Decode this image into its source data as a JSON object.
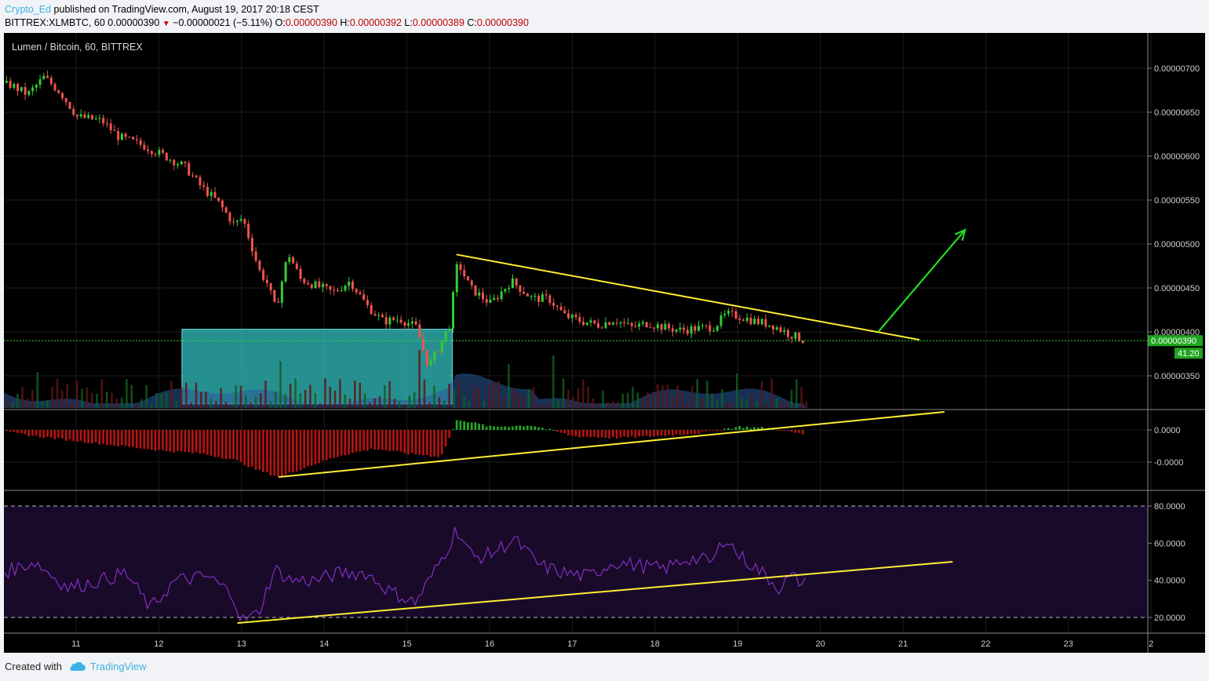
{
  "header": {
    "author": "Crypto_Ed",
    "published_text": " published on TradingView.com, August 19, 2017 20:18 CEST"
  },
  "quote": {
    "symbol": "BITTREX:XLMBTC, 60",
    "last": "0.00000390",
    "arrow": "▼",
    "change": "−0.00000021 (−5.11%)",
    "open_label": "O:",
    "open": "0.00000390",
    "high_label": "H:",
    "high": "0.00000392",
    "low_label": "L:",
    "low": "0.00000389",
    "close_label": "C:",
    "close": "0.00000390"
  },
  "chart_title": "Lumen / Bitcoin, 60, BITTREX",
  "footer": {
    "created_with": "Created with",
    "brand": "TradingView"
  },
  "colors": {
    "up": "#33cc33",
    "down": "#ef5350",
    "trendline": "#ffee33",
    "arrow": "#22dd22",
    "zone": "#33c0c0",
    "rsi_line": "#8a33cc",
    "rsi_band": "#1a0a2a",
    "price_tag": "#1fa51f"
  },
  "chart_data": [
    {
      "type": "candlestick",
      "title": "Lumen / Bitcoin, 60, BITTREX",
      "x_tick_labels": [
        "11",
        "12",
        "13",
        "14",
        "15",
        "16",
        "17",
        "18",
        "19",
        "20",
        "21",
        "22",
        "23",
        "2"
      ],
      "y_tick_labels": [
        "0.00000700",
        "0.00000650",
        "0.00000600",
        "0.00000550",
        "0.00000500",
        "0.00000450",
        "0.00000400",
        "0.00000350"
      ],
      "ylim": [
        3.18e-06,
        7.4e-06
      ],
      "last_price": "0.00000390",
      "volume_label": "41.20",
      "price_path": [
        [
          10.2,
          681
        ],
        [
          10.4,
          670
        ],
        [
          10.6,
          690
        ],
        [
          10.8,
          672
        ],
        [
          11.0,
          645
        ],
        [
          11.3,
          640
        ],
        [
          11.5,
          622
        ],
        [
          11.8,
          612
        ],
        [
          12.1,
          598
        ],
        [
          12.3,
          588
        ],
        [
          12.5,
          565
        ],
        [
          12.7,
          548
        ],
        [
          12.9,
          522
        ],
        [
          13.0,
          530
        ],
        [
          13.1,
          500
        ],
        [
          13.2,
          470
        ],
        [
          13.3,
          455
        ],
        [
          13.4,
          425
        ],
        [
          13.55,
          490
        ],
        [
          13.7,
          460
        ],
        [
          13.9,
          452
        ],
        [
          14.1,
          445
        ],
        [
          14.3,
          458
        ],
        [
          14.5,
          430
        ],
        [
          14.7,
          412
        ],
        [
          14.9,
          415
        ],
        [
          15.1,
          405
        ],
        [
          15.25,
          360
        ],
        [
          15.35,
          378
        ],
        [
          15.5,
          408
        ],
        [
          15.6,
          480
        ],
        [
          15.75,
          450
        ],
        [
          16.0,
          432
        ],
        [
          16.25,
          458
        ],
        [
          16.5,
          438
        ],
        [
          16.7,
          438
        ],
        [
          16.9,
          418
        ],
        [
          17.1,
          412
        ],
        [
          17.3,
          408
        ],
        [
          17.5,
          414
        ],
        [
          17.7,
          405
        ],
        [
          17.9,
          410
        ],
        [
          18.1,
          405
        ],
        [
          18.3,
          402
        ],
        [
          18.5,
          404
        ],
        [
          18.7,
          406
        ],
        [
          18.85,
          420
        ],
        [
          19.0,
          418
        ],
        [
          19.2,
          412
        ],
        [
          19.4,
          408
        ],
        [
          19.6,
          398
        ],
        [
          19.8,
          390
        ]
      ],
      "annotations": {
        "descending_resistance": [
          [
            15.6,
            4.88e-06
          ],
          [
            21.2,
            3.91e-06
          ]
        ],
        "projection_arrow": [
          [
            20.7,
            4e-06
          ],
          [
            21.75,
            5.16e-06
          ]
        ],
        "support_zone": {
          "x": [
            12.28,
            15.55
          ],
          "y": [
            3.18e-06,
            4.03e-06
          ]
        }
      }
    },
    {
      "type": "histogram",
      "title": "MACD histogram",
      "y_tick_labels": [
        "0.0000",
        "-0.0000"
      ],
      "series_path": [
        [
          10.1,
          -2
        ],
        [
          10.5,
          -8
        ],
        [
          11.0,
          -14
        ],
        [
          11.5,
          -20
        ],
        [
          12.0,
          -26
        ],
        [
          12.5,
          -30
        ],
        [
          12.9,
          -38
        ],
        [
          13.2,
          -52
        ],
        [
          13.45,
          -60
        ],
        [
          13.8,
          -46
        ],
        [
          14.2,
          -32
        ],
        [
          14.6,
          -24
        ],
        [
          15.0,
          -30
        ],
        [
          15.4,
          -34
        ],
        [
          15.6,
          14
        ],
        [
          16.0,
          4
        ],
        [
          16.5,
          6
        ],
        [
          17.0,
          -8
        ],
        [
          17.5,
          -10
        ],
        [
          18.0,
          -8
        ],
        [
          18.5,
          -4
        ],
        [
          19.0,
          4
        ],
        [
          19.4,
          2
        ],
        [
          19.8,
          -6
        ]
      ],
      "annotations": {
        "rising_support": [
          [
            13.45,
            -60
          ],
          [
            21.5,
            23
          ]
        ]
      }
    },
    {
      "type": "line",
      "title": "RSI",
      "y_tick_labels": [
        "80.0000",
        "60.0000",
        "40.0000",
        "20.0000"
      ],
      "ylim": [
        10,
        84
      ],
      "bands": [
        20,
        80
      ],
      "rsi_path": [
        [
          10.1,
          44
        ],
        [
          10.5,
          50
        ],
        [
          10.9,
          36
        ],
        [
          11.3,
          40
        ],
        [
          11.6,
          44
        ],
        [
          11.9,
          25
        ],
        [
          12.2,
          40
        ],
        [
          12.6,
          42
        ],
        [
          12.9,
          32
        ],
        [
          13.0,
          18
        ],
        [
          13.2,
          22
        ],
        [
          13.4,
          46
        ],
        [
          13.6,
          40
        ],
        [
          13.9,
          40
        ],
        [
          14.2,
          44
        ],
        [
          14.5,
          44
        ],
        [
          14.8,
          34
        ],
        [
          15.1,
          28
        ],
        [
          15.3,
          42
        ],
        [
          15.5,
          58
        ],
        [
          15.6,
          68
        ],
        [
          15.8,
          52
        ],
        [
          16.0,
          54
        ],
        [
          16.3,
          62
        ],
        [
          16.6,
          48
        ],
        [
          16.9,
          44
        ],
        [
          17.2,
          42
        ],
        [
          17.5,
          50
        ],
        [
          17.8,
          48
        ],
        [
          18.1,
          46
        ],
        [
          18.4,
          52
        ],
        [
          18.7,
          50
        ],
        [
          18.85,
          64
        ],
        [
          19.0,
          54
        ],
        [
          19.3,
          44
        ],
        [
          19.5,
          36
        ],
        [
          19.65,
          42
        ],
        [
          19.8,
          38
        ]
      ],
      "annotations": {
        "rising_support": [
          [
            12.95,
            17
          ],
          [
            21.6,
            50
          ]
        ]
      }
    }
  ]
}
